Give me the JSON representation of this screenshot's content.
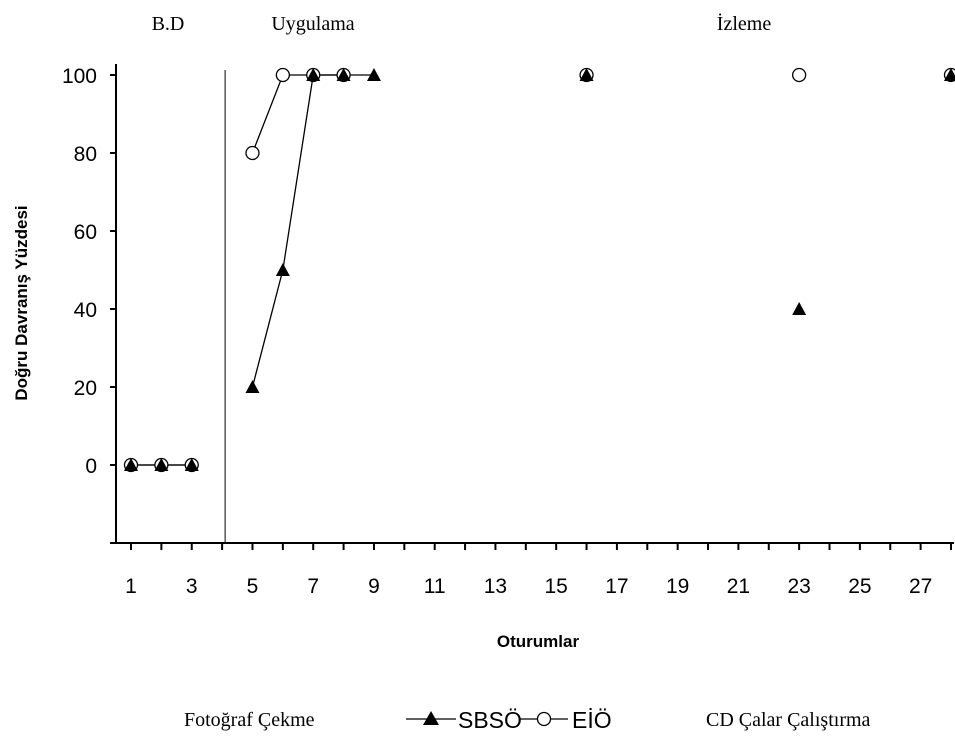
{
  "chart_data": {
    "type": "line",
    "xlabel": "Oturumlar",
    "ylabel": "Doğru Davranış Yüzdesi",
    "x_ticks": [
      1,
      3,
      5,
      7,
      9,
      11,
      13,
      15,
      17,
      19,
      21,
      23,
      25,
      27
    ],
    "y_ticks": [
      0,
      20,
      40,
      60,
      80,
      100
    ],
    "xlim": [
      0.5,
      28.5
    ],
    "ylim": [
      -20,
      100
    ],
    "phase_labels": [
      "B.D",
      "Uygulama",
      "İzleme"
    ],
    "phase_divider_x": 4,
    "left_caption": "Fotoğraf Çekme",
    "right_caption": "CD Çalar Çalıştırma",
    "legend_position": "bottom",
    "series": [
      {
        "name": "SBSÖ",
        "marker": "filled-triangle",
        "segments": [
          [
            [
              1,
              0
            ],
            [
              2,
              0
            ],
            [
              3,
              0
            ]
          ],
          [
            [
              5,
              20
            ],
            [
              6,
              50
            ],
            [
              7,
              100
            ],
            [
              8,
              100
            ],
            [
              9,
              100
            ]
          ],
          [
            [
              16,
              100
            ]
          ],
          [
            [
              23,
              40
            ]
          ],
          [
            [
              28,
              100
            ]
          ]
        ]
      },
      {
        "name": "EİÖ",
        "marker": "open-circle",
        "segments": [
          [
            [
              1,
              0
            ],
            [
              2,
              0
            ],
            [
              3,
              0
            ]
          ],
          [
            [
              5,
              80
            ],
            [
              6,
              100
            ],
            [
              7,
              100
            ],
            [
              8,
              100
            ]
          ],
          [
            [
              16,
              100
            ]
          ],
          [
            [
              23,
              100
            ]
          ],
          [
            [
              28,
              100
            ]
          ]
        ]
      }
    ]
  }
}
